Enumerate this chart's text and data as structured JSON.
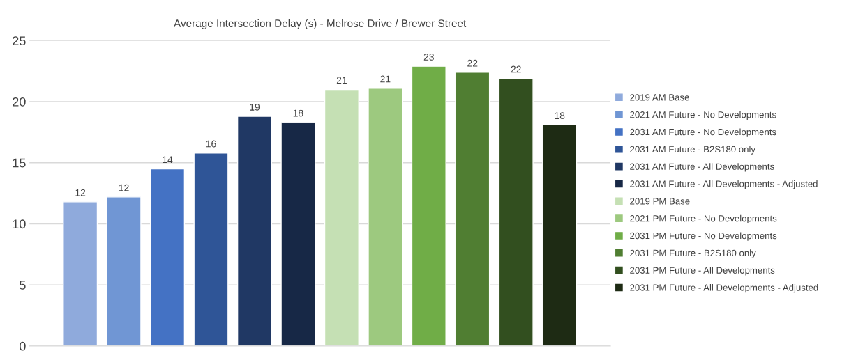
{
  "chart_data": {
    "type": "bar",
    "title": "Average Intersection Delay (s) - Melrose Drive / Brewer Street",
    "categories": [
      null
    ],
    "series": [
      {
        "name": "2019 AM Base",
        "color": "#8faadc",
        "values": [
          11.8
        ],
        "value_labels": [
          "12"
        ]
      },
      {
        "name": "2021 AM Future - No Developments",
        "color": "#7096d4",
        "values": [
          12.2
        ],
        "value_labels": [
          "12"
        ]
      },
      {
        "name": "2031 AM Future - No Developments",
        "color": "#4472c4",
        "values": [
          14.5
        ],
        "value_labels": [
          "14"
        ]
      },
      {
        "name": "2031 AM Future - B2S180 only",
        "color": "#2f5597",
        "values": [
          15.8
        ],
        "value_labels": [
          "16"
        ]
      },
      {
        "name": "2031 AM Future - All Developments",
        "color": "#203864",
        "values": [
          18.8
        ],
        "value_labels": [
          "19"
        ]
      },
      {
        "name": "2031 AM Future - All Developments - Adjusted",
        "color": "#172846",
        "values": [
          18.3
        ],
        "value_labels": [
          "18"
        ]
      },
      {
        "name": "2019 PM Base",
        "color": "#c5e0b4",
        "values": [
          21.0
        ],
        "value_labels": [
          "21"
        ]
      },
      {
        "name": "2021 PM Future - No Developments",
        "color": "#9dc97f",
        "values": [
          21.1
        ],
        "value_labels": [
          "21"
        ]
      },
      {
        "name": "2031 PM Future - No Developments",
        "color": "#70ad47",
        "values": [
          22.9
        ],
        "value_labels": [
          "23"
        ]
      },
      {
        "name": "2031 PM Future - B2S180 only",
        "color": "#507e32",
        "values": [
          22.4
        ],
        "value_labels": [
          "22"
        ]
      },
      {
        "name": "2031 PM Future - All Developments",
        "color": "#324f1f",
        "values": [
          21.9
        ],
        "value_labels": [
          "22"
        ]
      },
      {
        "name": "2031 PM Future - All Developments - Adjusted",
        "color": "#1e2b14",
        "values": [
          18.1
        ],
        "value_labels": [
          "18"
        ]
      }
    ],
    "ylim": [
      0,
      25
    ],
    "yticks": [
      0,
      5,
      10,
      15,
      20,
      25
    ],
    "grid": "y",
    "legend": "right",
    "tick_labels": "y"
  }
}
